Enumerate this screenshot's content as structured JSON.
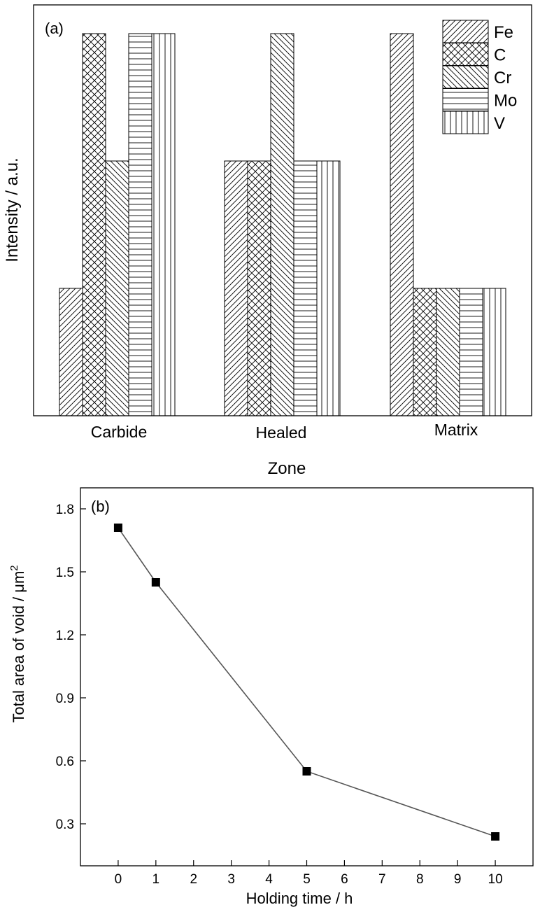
{
  "chart_data": [
    {
      "type": "bar",
      "panel_label": "(a)",
      "xlabel": "Zone",
      "ylabel": "Intensity / a.u.",
      "categories": [
        "Carbide",
        "Healed",
        "Matrix"
      ],
      "ylim": [
        0,
        3
      ],
      "yticks_shown": false,
      "legend_position": "top-right",
      "series": [
        {
          "name": "Fe",
          "pattern": "diagonal-up",
          "values": [
            1,
            2,
            3
          ]
        },
        {
          "name": "C",
          "pattern": "crosshatch",
          "values": [
            3,
            2,
            1
          ]
        },
        {
          "name": "Cr",
          "pattern": "diagonal-down",
          "values": [
            2,
            3,
            1
          ]
        },
        {
          "name": "Mo",
          "pattern": "horizontal",
          "values": [
            3,
            2,
            1
          ]
        },
        {
          "name": "V",
          "pattern": "vertical",
          "values": [
            3,
            2,
            1
          ]
        }
      ],
      "colors": {
        "stroke": "#000000",
        "fill": "#ffffff"
      }
    },
    {
      "type": "line",
      "panel_label": "(b)",
      "xlabel": "Holding time / h",
      "ylabel": "Total area of void / μm",
      "ylabel_superscript": "2",
      "x": [
        0,
        1,
        5,
        10
      ],
      "y": [
        1.71,
        1.45,
        0.55,
        0.24
      ],
      "xlim": [
        -1,
        11
      ],
      "ylim": [
        0.1,
        1.9
      ],
      "xticks": [
        0,
        1,
        2,
        3,
        4,
        5,
        6,
        7,
        8,
        9,
        10
      ],
      "yticks": [
        0.3,
        0.6,
        0.9,
        1.2,
        1.5,
        1.8
      ],
      "ytick_labels": [
        "0.3",
        "0.6",
        "0.9",
        "1.2",
        "1.5",
        "1.8"
      ],
      "marker": "square",
      "grid": false,
      "colors": {
        "line": "#555555",
        "marker": "#000000"
      }
    }
  ]
}
